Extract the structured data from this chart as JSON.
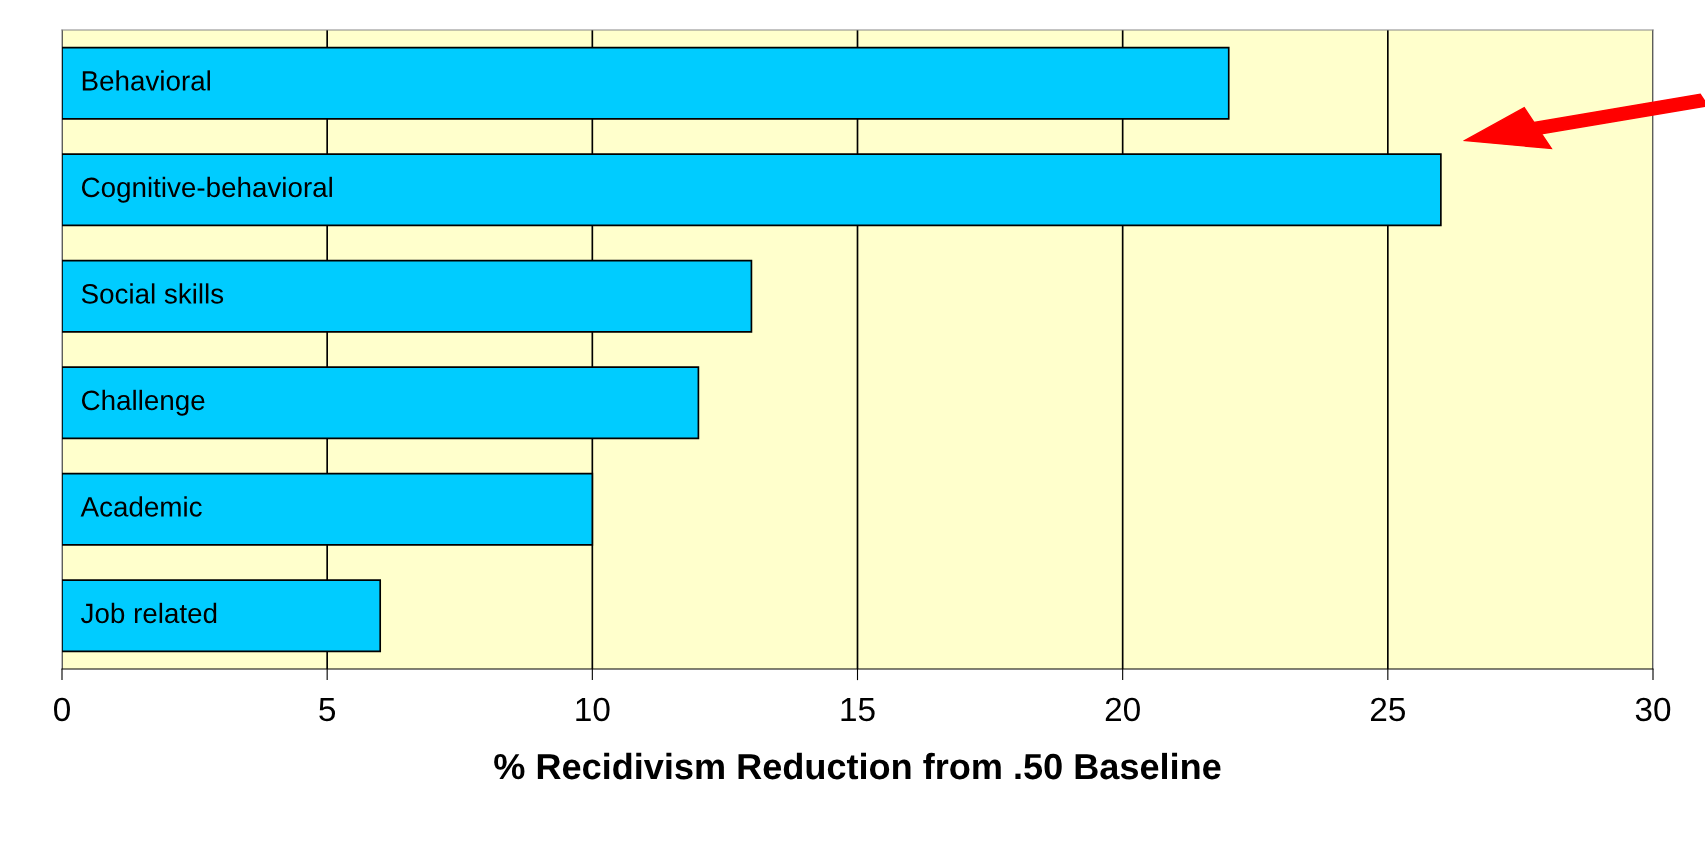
{
  "chart_data": {
    "type": "bar",
    "orientation": "horizontal",
    "xlabel": "% Recidivism Reduction from .50 Baseline",
    "categories": [
      "Behavioral",
      "Cognitive-behavioral",
      "Social skills",
      "Challenge",
      "Academic",
      "Job related"
    ],
    "values": [
      22,
      26,
      13,
      12,
      10,
      6
    ],
    "color": "#00ccff",
    "xlim": [
      0,
      30
    ],
    "xticks": [
      0,
      5,
      10,
      15,
      20,
      25,
      30
    ],
    "grid": "x",
    "tick_labels": "x"
  }
}
